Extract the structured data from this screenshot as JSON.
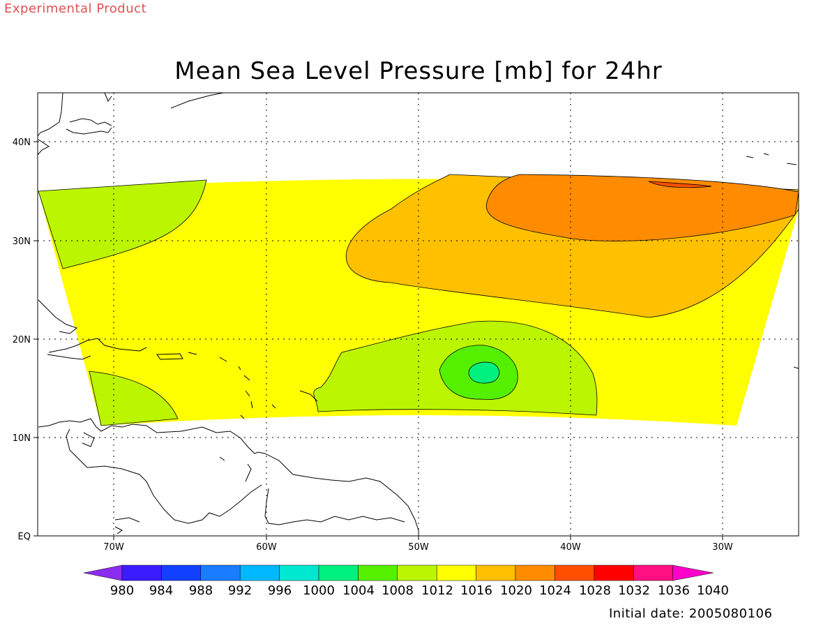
{
  "header": {
    "product_label": "Experimental Product"
  },
  "map": {
    "title": "Mean Sea Level Pressure [mb] for 24hr",
    "lat_labels": [
      "40N",
      "30N",
      "20N",
      "10N",
      "EQ"
    ],
    "lon_labels": [
      "70W",
      "60W",
      "50W",
      "40W",
      "30W"
    ]
  },
  "colorbar": {
    "labels": [
      "980",
      "984",
      "988",
      "992",
      "996",
      "1000",
      "1004",
      "1008",
      "1012",
      "1016",
      "1020",
      "1024",
      "1028",
      "1032",
      "1036",
      "1040"
    ],
    "colors": [
      "#8b2cf0",
      "#3a1cff",
      "#1240ff",
      "#1a7cff",
      "#00b8ff",
      "#00e8d0",
      "#00f080",
      "#55f000",
      "#bbf500",
      "#ffff00",
      "#ffc000",
      "#ff8c00",
      "#ff5000",
      "#ff0000",
      "#ff1080",
      "#ff00cc"
    ]
  },
  "footer": {
    "initial_date": "Initial date: 2005080106"
  },
  "colors": {
    "product_label": "#e05050"
  }
}
